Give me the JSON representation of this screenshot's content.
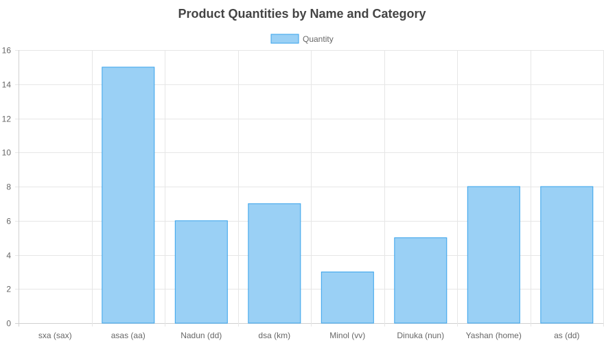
{
  "chart_data": {
    "type": "bar",
    "title": "Product Quantities by Name and Category",
    "categories": [
      "sxa (sax)",
      "asas (aa)",
      "Nadun (dd)",
      "dsa (km)",
      "Minol (vv)",
      "Dinuka (nun)",
      "Yashan (home)",
      "as (dd)"
    ],
    "series": [
      {
        "name": "Quantity",
        "values": [
          0,
          15,
          6,
          7,
          3,
          5,
          8,
          8
        ]
      }
    ],
    "ylim": [
      0,
      16
    ],
    "yticks": [
      0,
      2,
      4,
      6,
      8,
      10,
      12,
      14,
      16
    ],
    "grid": true,
    "legend_position": "top",
    "colors": {
      "bar_fill": "#9ad0f5",
      "bar_border": "#36a2eb",
      "grid": "#e6e6e6"
    }
  }
}
